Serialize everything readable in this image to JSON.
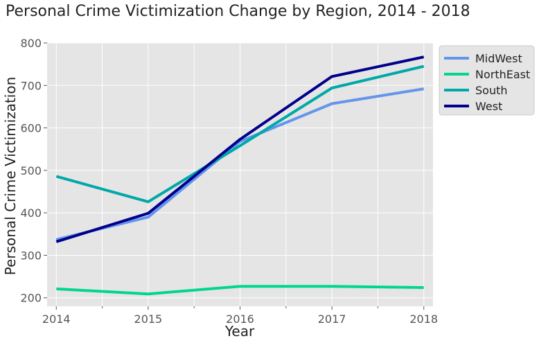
{
  "chart_data": {
    "type": "line",
    "title": "Personal Crime Victimization Change by Region, 2014 - 2018",
    "xlabel": "Year",
    "ylabel": "Personal Crime Victimization",
    "x": [
      2014,
      2015,
      2016,
      2017,
      2018
    ],
    "x_ticks": [
      "2014",
      "2015",
      "2016",
      "2017",
      "2018"
    ],
    "xlim": [
      2013.9,
      2018.1
    ],
    "ylim": [
      180,
      800
    ],
    "y_ticks": [
      200,
      300,
      400,
      500,
      600,
      700,
      800
    ],
    "grid": true,
    "legend_position": "outside-top-right",
    "series": [
      {
        "name": "MidWest",
        "color": "#6495ED",
        "values": [
          337,
          390,
          568,
          657,
          692
        ]
      },
      {
        "name": "NorthEast",
        "color": "#00D68F",
        "values": [
          221,
          209,
          227,
          227,
          224
        ]
      },
      {
        "name": "South",
        "color": "#00A8A8",
        "values": [
          486,
          426,
          558,
          694,
          745
        ]
      },
      {
        "name": "West",
        "color": "#00008B",
        "values": [
          332,
          399,
          573,
          721,
          767
        ]
      }
    ]
  }
}
